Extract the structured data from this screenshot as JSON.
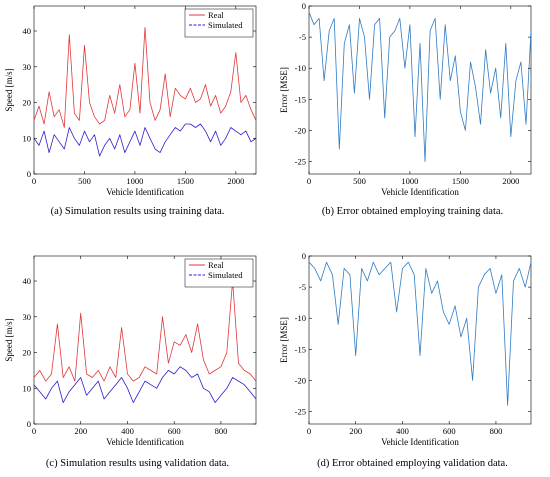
{
  "captions": {
    "a": "(a) Simulation results using training data.",
    "b": "(b) Error obtained employing training data.",
    "c": "(c) Simulation results using validation data.",
    "d": "(d) Error obtained employing validation data."
  },
  "colors": {
    "real": "#e0383a",
    "simulated": "#2a1fd1",
    "error": "#2f7cc4"
  },
  "chart_data": [
    {
      "id": "a",
      "type": "line",
      "xlabel": "Vehicle Identification",
      "ylabel": "Speed [m/s]",
      "xlim": [
        0,
        2200
      ],
      "ylim": [
        0,
        47
      ],
      "xticks": [
        0,
        500,
        1000,
        1500,
        2000
      ],
      "yticks": [
        0,
        10,
        20,
        30,
        40
      ],
      "legend": "top-right",
      "series": [
        {
          "name": "Real",
          "color": "#e0383a",
          "x": [
            0,
            50,
            100,
            150,
            200,
            250,
            300,
            350,
            400,
            450,
            500,
            550,
            600,
            650,
            700,
            750,
            800,
            850,
            900,
            950,
            1000,
            1050,
            1100,
            1150,
            1200,
            1250,
            1300,
            1350,
            1400,
            1450,
            1500,
            1550,
            1600,
            1650,
            1700,
            1750,
            1800,
            1850,
            1900,
            1950,
            2000,
            2050,
            2100,
            2150,
            2200
          ],
          "y": [
            15,
            19,
            14,
            23,
            16,
            18,
            13,
            39,
            17,
            15,
            36,
            20,
            16,
            14,
            15,
            22,
            17,
            25,
            16,
            18,
            31,
            17,
            41,
            20,
            15,
            18,
            28,
            16,
            24,
            22,
            21,
            24,
            20,
            21,
            25,
            19,
            22,
            17,
            19,
            23,
            34,
            20,
            22,
            18,
            15
          ]
        },
        {
          "name": "Simulated",
          "color": "#2a1fd1",
          "x": [
            0,
            50,
            100,
            150,
            200,
            250,
            300,
            350,
            400,
            450,
            500,
            550,
            600,
            650,
            700,
            750,
            800,
            850,
            900,
            950,
            1000,
            1050,
            1100,
            1150,
            1200,
            1250,
            1300,
            1350,
            1400,
            1450,
            1500,
            1550,
            1600,
            1650,
            1700,
            1750,
            1800,
            1850,
            1900,
            1950,
            2000,
            2050,
            2100,
            2150,
            2200
          ],
          "y": [
            10,
            8,
            12,
            6,
            11,
            9,
            7,
            13,
            10,
            8,
            12,
            9,
            11,
            5,
            8,
            10,
            7,
            11,
            6,
            9,
            12,
            8,
            13,
            10,
            7,
            6,
            9,
            11,
            13,
            12,
            14,
            14,
            13,
            14,
            12,
            9,
            12,
            8,
            10,
            13,
            12,
            11,
            12,
            9,
            10
          ]
        }
      ]
    },
    {
      "id": "b",
      "type": "line",
      "xlabel": "Vehicle Identification",
      "ylabel": "Error [MSE]",
      "xlim": [
        0,
        2200
      ],
      "ylim": [
        -27,
        0
      ],
      "xticks": [
        0,
        500,
        1000,
        1500,
        2000
      ],
      "yticks": [
        0,
        -5,
        -10,
        -15,
        -20,
        -25
      ],
      "series": [
        {
          "name": "",
          "color": "#2f7cc4",
          "x": [
            0,
            50,
            100,
            150,
            200,
            250,
            300,
            350,
            400,
            450,
            500,
            550,
            600,
            650,
            700,
            750,
            800,
            850,
            900,
            950,
            1000,
            1050,
            1100,
            1150,
            1200,
            1250,
            1300,
            1350,
            1400,
            1450,
            1500,
            1550,
            1600,
            1650,
            1700,
            1750,
            1800,
            1850,
            1900,
            1950,
            2000,
            2050,
            2100,
            2150,
            2200
          ],
          "y": [
            -1,
            -3,
            -2,
            -12,
            -4,
            -2,
            -23,
            -6,
            -3,
            -14,
            -2,
            -5,
            -15,
            -3,
            -2,
            -18,
            -5,
            -4,
            -2,
            -10,
            -3,
            -21,
            -6,
            -25,
            -4,
            -2,
            -15,
            -3,
            -12,
            -8,
            -17,
            -20,
            -9,
            -13,
            -19,
            -7,
            -14,
            -10,
            -18,
            -6,
            -21,
            -12,
            -9,
            -19,
            -4
          ]
        }
      ]
    },
    {
      "id": "c",
      "type": "line",
      "xlabel": "Vehicle Identification",
      "ylabel": "Speed [m/s]",
      "xlim": [
        0,
        950
      ],
      "ylim": [
        0,
        47
      ],
      "xticks": [
        0,
        200,
        400,
        600,
        800
      ],
      "yticks": [
        0,
        10,
        20,
        30,
        40
      ],
      "legend": "top-right",
      "series": [
        {
          "name": "Real",
          "color": "#e0383a",
          "x": [
            0,
            25,
            50,
            75,
            100,
            125,
            150,
            175,
            200,
            225,
            250,
            275,
            300,
            325,
            350,
            375,
            400,
            425,
            450,
            475,
            500,
            525,
            550,
            575,
            600,
            625,
            650,
            675,
            700,
            725,
            750,
            775,
            800,
            825,
            850,
            875,
            900,
            925,
            950
          ],
          "y": [
            13,
            15,
            12,
            14,
            28,
            13,
            16,
            12,
            31,
            14,
            13,
            15,
            12,
            16,
            13,
            27,
            14,
            12,
            13,
            16,
            15,
            14,
            30,
            17,
            23,
            22,
            25,
            20,
            28,
            18,
            14,
            15,
            16,
            20,
            40,
            17,
            15,
            14,
            12
          ]
        },
        {
          "name": "Simulated",
          "color": "#2a1fd1",
          "x": [
            0,
            25,
            50,
            75,
            100,
            125,
            150,
            175,
            200,
            225,
            250,
            275,
            300,
            325,
            350,
            375,
            400,
            425,
            450,
            475,
            500,
            525,
            550,
            575,
            600,
            625,
            650,
            675,
            700,
            725,
            750,
            775,
            800,
            825,
            850,
            875,
            900,
            925,
            950
          ],
          "y": [
            11,
            9,
            7,
            10,
            12,
            6,
            9,
            11,
            13,
            8,
            10,
            12,
            7,
            9,
            11,
            13,
            10,
            6,
            9,
            12,
            11,
            10,
            13,
            15,
            14,
            16,
            15,
            13,
            14,
            10,
            9,
            6,
            8,
            10,
            13,
            12,
            11,
            9,
            7
          ]
        }
      ]
    },
    {
      "id": "d",
      "type": "line",
      "xlabel": "Vehicle Identification",
      "ylabel": "Error [MSE]",
      "xlim": [
        0,
        950
      ],
      "ylim": [
        -27,
        0
      ],
      "xticks": [
        0,
        200,
        400,
        600,
        800
      ],
      "yticks": [
        0,
        -5,
        -10,
        -15,
        -20,
        -25
      ],
      "series": [
        {
          "name": "",
          "color": "#2f7cc4",
          "x": [
            0,
            25,
            50,
            75,
            100,
            125,
            150,
            175,
            200,
            225,
            250,
            275,
            300,
            325,
            350,
            375,
            400,
            425,
            450,
            475,
            500,
            525,
            550,
            575,
            600,
            625,
            650,
            675,
            700,
            725,
            750,
            775,
            800,
            825,
            850,
            875,
            900,
            925,
            950
          ],
          "y": [
            -1,
            -2,
            -4,
            -1,
            -3,
            -11,
            -2,
            -3,
            -16,
            -2,
            -4,
            -1,
            -3,
            -2,
            -1,
            -9,
            -2,
            -1,
            -3,
            -16,
            -2,
            -6,
            -4,
            -9,
            -11,
            -8,
            -13,
            -10,
            -20,
            -5,
            -3,
            -2,
            -6,
            -3,
            -24,
            -4,
            -2,
            -5,
            -1
          ]
        }
      ]
    }
  ]
}
